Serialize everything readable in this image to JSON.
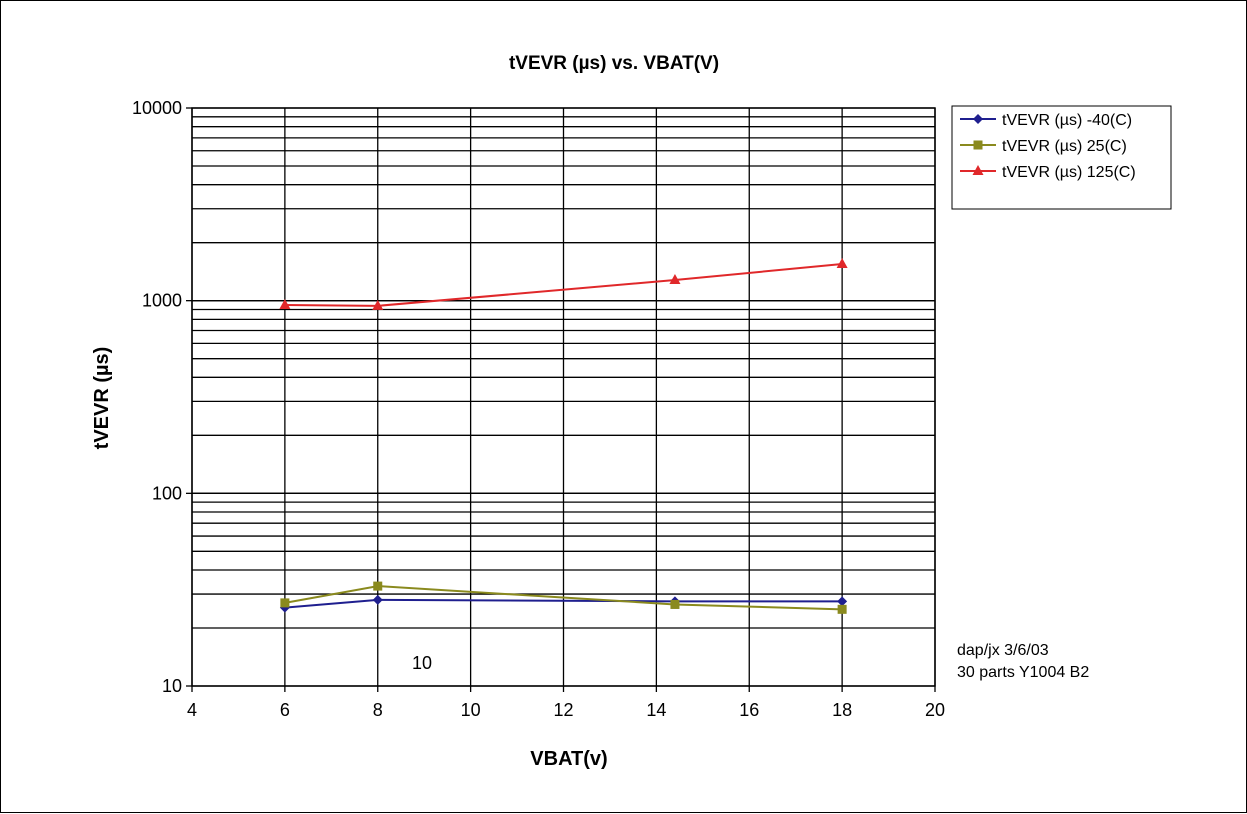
{
  "chart_data": {
    "type": "line",
    "title": "tVEVR (µs) vs. VBAT(V)",
    "xlabel": "VBAT(v)",
    "ylabel": "tVEVR (µs)",
    "xlim": [
      4,
      20
    ],
    "xticks": [
      4,
      6,
      8,
      10,
      12,
      14,
      16,
      18,
      20
    ],
    "ylim": [
      10,
      10000
    ],
    "yscale": "log",
    "yticks": [
      10,
      100,
      1000,
      10000
    ],
    "grid": true,
    "legend_position": "right",
    "series": [
      {
        "name": "tVEVR (µs) -40(C)",
        "color": "#1f1f8f",
        "marker": "diamond",
        "x": [
          6,
          8,
          14.4,
          18
        ],
        "values": [
          25.5,
          28,
          27.5,
          27.5
        ]
      },
      {
        "name": "tVEVR (µs) 25(C)",
        "color": "#8a8a1e",
        "marker": "square",
        "x": [
          6,
          8,
          14.4,
          18
        ],
        "values": [
          27,
          33,
          26.5,
          25
        ]
      },
      {
        "name": "tVEVR (µs) 125(C)",
        "color": "#e0282a",
        "marker": "triangle",
        "x": [
          6,
          8,
          14.4,
          18
        ],
        "values": [
          950,
          940,
          1280,
          1550
        ]
      }
    ],
    "annotations": [
      "10",
      "dap/jx 3/6/03",
      "30 parts Y1004 B2"
    ]
  }
}
